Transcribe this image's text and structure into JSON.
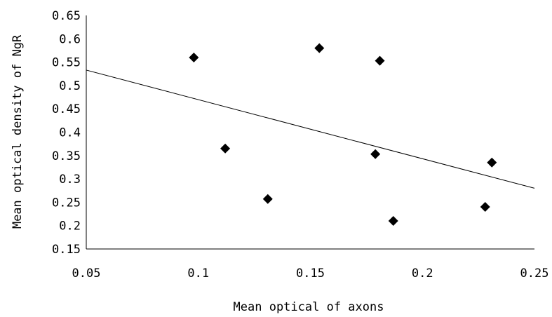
{
  "chart_data": {
    "type": "scatter",
    "title": "",
    "xlabel": "Mean optical of axons",
    "ylabel": "Mean optical density of NgR",
    "xlim": [
      0.05,
      0.25
    ],
    "ylim": [
      0.15,
      0.65
    ],
    "x_ticks": [
      "0.05",
      "0.1",
      "0.15",
      "0.2",
      "0.25"
    ],
    "x_tick_values": [
      0.05,
      0.1,
      0.15,
      0.2,
      0.25
    ],
    "y_ticks": [
      "0.65",
      "0.6",
      "0.55",
      "0.5",
      "0.45",
      "0.4",
      "0.35",
      "0.3",
      "0.25",
      "0.2",
      "0.15"
    ],
    "y_tick_values": [
      0.65,
      0.6,
      0.55,
      0.5,
      0.45,
      0.4,
      0.35,
      0.3,
      0.25,
      0.2,
      0.15
    ],
    "grid": false,
    "legend": "none",
    "marker": "diamond",
    "marker_color": "#000000",
    "points": [
      {
        "x": 0.098,
        "y": 0.56
      },
      {
        "x": 0.112,
        "y": 0.365
      },
      {
        "x": 0.131,
        "y": 0.257
      },
      {
        "x": 0.154,
        "y": 0.58
      },
      {
        "x": 0.179,
        "y": 0.353
      },
      {
        "x": 0.181,
        "y": 0.553
      },
      {
        "x": 0.187,
        "y": 0.21
      },
      {
        "x": 0.228,
        "y": 0.24
      },
      {
        "x": 0.231,
        "y": 0.335
      }
    ],
    "trendline": {
      "x": [
        0.05,
        0.25
      ],
      "y": [
        0.533,
        0.28
      ]
    }
  }
}
